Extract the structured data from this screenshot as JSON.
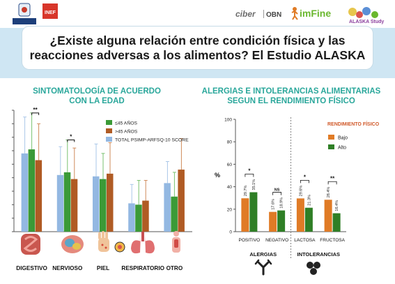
{
  "header": {
    "logos": [
      "POLITÉCNICA",
      "INEF",
      "ciber",
      "OBN",
      "imFine",
      "ALASKA Study"
    ]
  },
  "title": "¿Existe alguna relación entre condición física y las reacciones adversas a los alimentos? El Estudio ALASKA",
  "left": {
    "title_line1": "SINTOMATOLOGÍA DE ACUERDO",
    "title_line2": "CON LA EDAD"
  },
  "right": {
    "title_line1": "ALERGIAS E INTOLERANCIAS ALIMENTARIAS",
    "title_line2": "SEGUN EL RENDIMIENTO FÍSICO"
  },
  "colors": {
    "blue": "#93b8e2",
    "green": "#3b9a37",
    "brown": "#b05b24",
    "orange": "#e07b26",
    "dkgreen": "#2f7f26",
    "teal": "#2aa79b"
  },
  "chart_data": [
    {
      "type": "bar",
      "title": "SINTOMATOLOGÍA DE ACUERDO CON LA EDAD",
      "categories": [
        "DIGESTIVO",
        "NERVIOSO",
        "PIEL",
        "RESPIRATORIO",
        "OTRO"
      ],
      "series": [
        {
          "name": "TOTAL PSIMP-ARFSQ-10 SCORE",
          "values": [
            5.8,
            4.2,
            4.1,
            2.1,
            3.6
          ],
          "errors": [
            2.7,
            2.1,
            2.4,
            1.4,
            1.6
          ]
        },
        {
          "name": "≤45 AÑOS",
          "values": [
            6.1,
            4.4,
            3.9,
            2.0,
            2.6
          ],
          "errors": [
            2.7,
            2.4,
            1.9,
            1.8,
            1.8
          ]
        },
        {
          "name": ">45 AÑOS",
          "values": [
            5.3,
            3.9,
            4.3,
            2.3,
            4.6
          ],
          "errors": [
            2.7,
            2.3,
            2.3,
            1.5,
            2.3
          ]
        }
      ],
      "significance": [
        {
          "category": "DIGESTIVO",
          "label": "**"
        },
        {
          "category": "NERVIOSO",
          "label": "*"
        }
      ],
      "ylim": [
        0,
        9
      ],
      "grid": false,
      "legend": "top-right"
    },
    {
      "type": "bar",
      "title": "ALERGIAS E INTOLERANCIAS ALIMENTARIAS SEGUN EL RENDIMIENTO FÍSICO",
      "ylabel": "%",
      "yticks": [
        0,
        20,
        40,
        60,
        80,
        100
      ],
      "ylim": [
        0,
        100
      ],
      "categories": [
        "POSITIVO",
        "NEGATIVO",
        "LACTOSA",
        "FRUCTOSA"
      ],
      "groups": [
        "ALERGIAS",
        "INTOLERANCIAS"
      ],
      "legend_title": "RENDIMIENTO FÍSICO",
      "series": [
        {
          "name": "Bajo",
          "values": [
            29.7,
            17.6,
            29.6,
            28.4
          ],
          "labels": [
            "29.7%",
            "17.6%",
            "29.6%",
            "28.4%"
          ]
        },
        {
          "name": "Alto",
          "values": [
            35.1,
            18.9,
            21.3,
            16.4
          ],
          "labels": [
            "35.1%",
            "18.9%",
            "21.3%",
            "16.4%"
          ]
        }
      ],
      "significance": [
        "*",
        "NS",
        "*",
        "**"
      ],
      "legend": "top-right"
    }
  ]
}
